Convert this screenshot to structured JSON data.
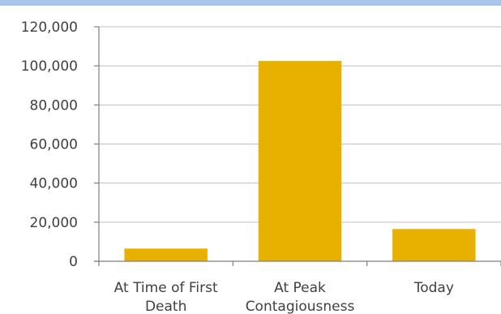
{
  "colors": {
    "top_band": "#a9c4e8",
    "bar": "#e8b100",
    "grid": "#bfbfbf",
    "axis": "#7f7f7f",
    "text": "#404040"
  },
  "chart_data": {
    "type": "bar",
    "categories": [
      "At Time of First Death",
      "At Peak Contagiousness",
      "Today"
    ],
    "values": [
      6500,
      102500,
      16500
    ],
    "ylim": [
      0,
      120000
    ],
    "yticks": [
      0,
      20000,
      40000,
      60000,
      80000,
      100000,
      120000
    ],
    "ytick_labels": [
      "0",
      "20,000",
      "40,000",
      "60,000",
      "80,000",
      "100,000",
      "120,000"
    ],
    "grid": true
  }
}
